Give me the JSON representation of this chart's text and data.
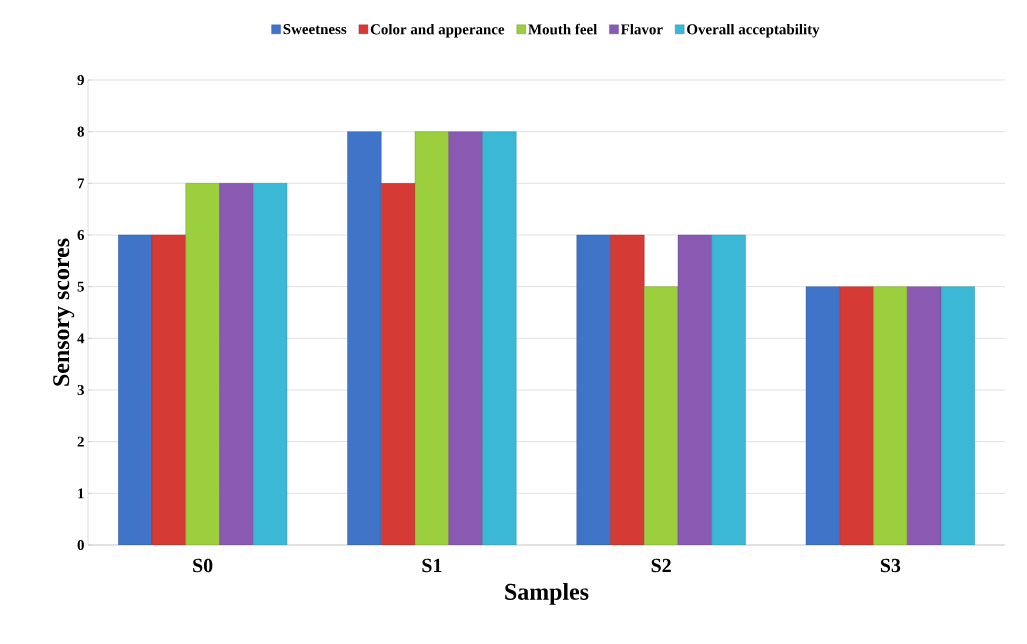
{
  "chart_data": {
    "type": "bar",
    "xlabel": "Samples",
    "ylabel": "Sensory scores",
    "categories": [
      "S0",
      "S1",
      "S2",
      "S3"
    ],
    "series": [
      {
        "name": "Sweetness",
        "color": "#3f74c8",
        "values": [
          6,
          8,
          6,
          5
        ]
      },
      {
        "name": "Color and apperance",
        "color": "#d63a35",
        "values": [
          6,
          7,
          6,
          5
        ]
      },
      {
        "name": "Mouth feel",
        "color": "#9bcf3e",
        "values": [
          7,
          8,
          5,
          5
        ]
      },
      {
        "name": "Flavor",
        "color": "#8a5ab3",
        "values": [
          7,
          8,
          6,
          5
        ]
      },
      {
        "name": "Overall acceptability",
        "color": "#3ab8d6",
        "values": [
          7,
          8,
          6,
          5
        ]
      }
    ],
    "ylim": [
      0,
      9
    ],
    "yticks": [
      0,
      1,
      2,
      3,
      4,
      5,
      6,
      7,
      8,
      9
    ],
    "grid": "y",
    "legend": "top"
  }
}
